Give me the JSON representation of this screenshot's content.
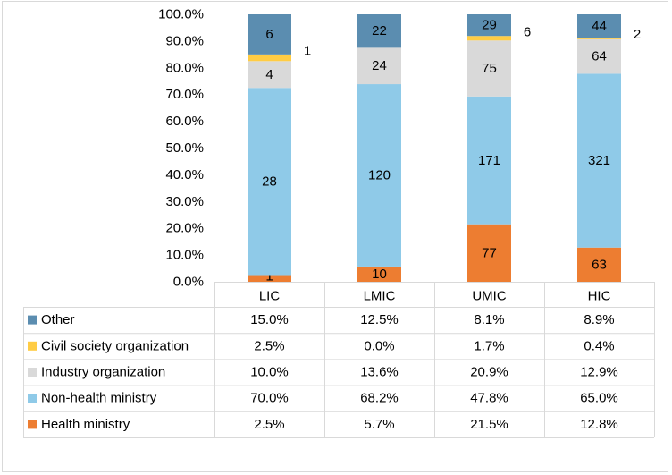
{
  "chart_data": {
    "type": "bar",
    "stacked": true,
    "normalized": true,
    "categories": [
      "LIC",
      "LMIC",
      "UMIC",
      "HIC"
    ],
    "ylim": [
      0,
      100
    ],
    "yticks": [
      "0.0%",
      "10.0%",
      "20.0%",
      "30.0%",
      "40.0%",
      "50.0%",
      "60.0%",
      "70.0%",
      "80.0%",
      "90.0%",
      "100.0%"
    ],
    "grid": false,
    "legend": "data-table-left",
    "series": [
      {
        "name": "Health ministry",
        "color": "#ED7D31",
        "counts": [
          1,
          10,
          77,
          63
        ],
        "percent_labels": [
          "2.5%",
          "5.7%",
          "21.5%",
          "12.8%"
        ],
        "values": [
          2.5,
          5.7,
          21.5,
          12.8
        ]
      },
      {
        "name": "Non-health ministry",
        "color": "#8FCAE8",
        "counts": [
          28,
          120,
          171,
          321
        ],
        "percent_labels": [
          "70.0%",
          "68.2%",
          "47.8%",
          "65.0%"
        ],
        "values": [
          70.0,
          68.2,
          47.8,
          65.0
        ]
      },
      {
        "name": "Industry organization",
        "color": "#D9D9D9",
        "counts": [
          4,
          24,
          75,
          64
        ],
        "percent_labels": [
          "10.0%",
          "13.6%",
          "20.9%",
          "12.9%"
        ],
        "values": [
          10.0,
          13.6,
          20.9,
          12.9
        ]
      },
      {
        "name": "Civil society organization",
        "color": "#FFCC44",
        "counts": [
          1,
          0,
          6,
          2
        ],
        "percent_labels": [
          "2.5%",
          "0.0%",
          "1.7%",
          "0.4%"
        ],
        "values": [
          2.5,
          0.0,
          1.7,
          0.4
        ]
      },
      {
        "name": "Other",
        "color": "#5B8DB0",
        "counts": [
          6,
          22,
          29,
          44
        ],
        "percent_labels": [
          "15.0%",
          "12.5%",
          "8.1%",
          "8.9%"
        ],
        "values": [
          15.0,
          12.5,
          8.1,
          8.9
        ]
      }
    ]
  }
}
